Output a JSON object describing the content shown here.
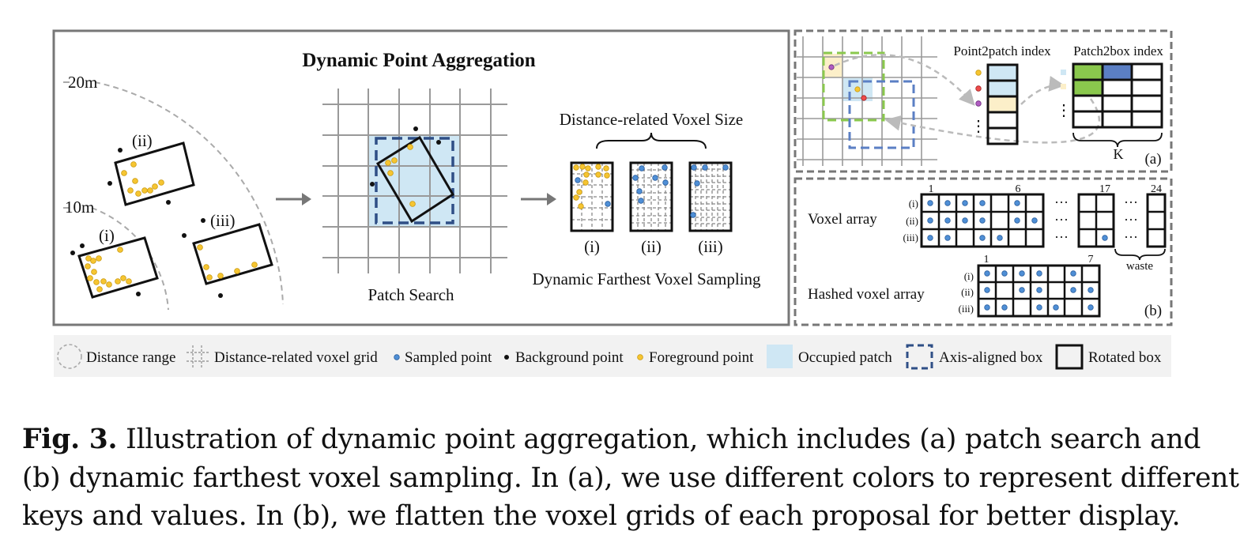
{
  "main_panel": {
    "title": "Dynamic Point Aggregation",
    "range_labels": [
      "20m",
      "10m"
    ],
    "proposal_labels": [
      "(ii)",
      "(i)",
      "(iii)"
    ],
    "patch_search_label": "Patch Search",
    "voxel_size_label": "Distance-related Voxel Size",
    "voxel_labels": [
      "(i)",
      "(ii)",
      "(iii)"
    ],
    "dfvs_label": "Dynamic Farthest Voxel Sampling"
  },
  "panel_a": {
    "point2patch_label": "Point2patch index",
    "patch2box_label": "Patch2box index",
    "k_label": "K",
    "tag": "(a)"
  },
  "panel_b": {
    "voxel_array_label": "Voxel array",
    "hashed_label": "Hashed voxel array",
    "row_labels": [
      "(i)",
      "(ii)",
      "(iii)"
    ],
    "voxel_index_labels": [
      "1",
      "6",
      "17",
      "24"
    ],
    "hashed_index_labels": [
      "1",
      "7"
    ],
    "ellipsis": "···",
    "waste_label": "waste",
    "tag": "(b)"
  },
  "legend": [
    {
      "icon": "distance-range-icon",
      "label": "Distance range"
    },
    {
      "icon": "voxel-grid-icon",
      "label": "Distance-related voxel grid"
    },
    {
      "icon": "sampled-point-icon",
      "label": "Sampled point"
    },
    {
      "icon": "background-point-icon",
      "label": "Background point"
    },
    {
      "icon": "foreground-point-icon",
      "label": "Foreground point"
    },
    {
      "icon": "occupied-patch-icon",
      "label": "Occupied patch"
    },
    {
      "icon": "axis-aligned-box-icon",
      "label": "Axis-aligned box"
    },
    {
      "icon": "rotated-box-icon",
      "label": "Rotated box"
    }
  ],
  "colors": {
    "foreground": "#f6c531",
    "sampled": "#4f8fd6",
    "patch": "#cfe7f4",
    "axis_box": "#2f4f86",
    "green": "#8ac84d",
    "blue_cell": "#5b7fc4",
    "cream": "#fcefc9",
    "legend_bg": "#f2f2f2"
  },
  "caption": {
    "fig_label": "Fig. 3.",
    "text": " Illustration of dynamic point aggregation, which includes (a) patch search and (b) dynamic farthest voxel sampling. In (a), we use different colors to represent different keys and values. In (b), we flatten the voxel grids of each proposal for better display."
  }
}
